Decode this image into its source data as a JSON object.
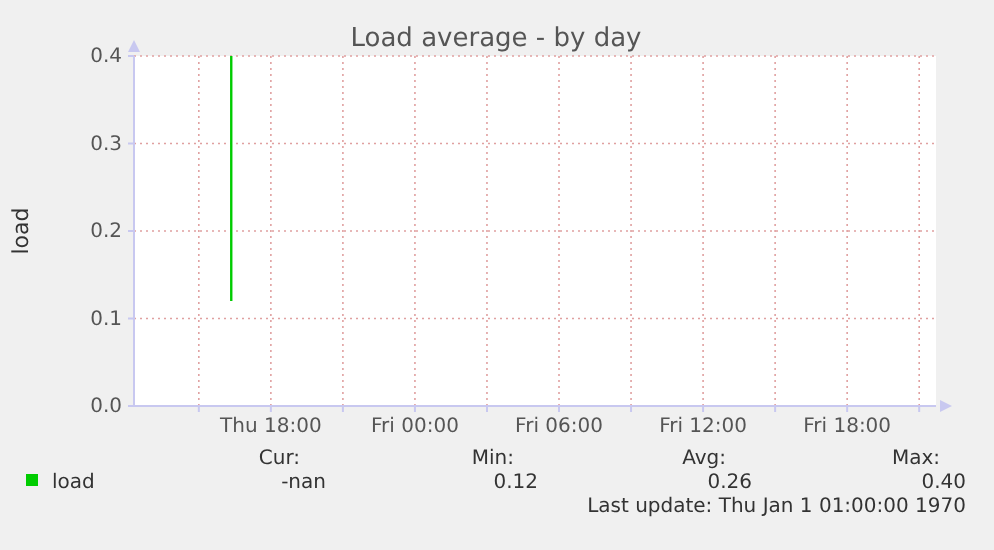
{
  "chart_data": {
    "type": "line",
    "title": "Load average - by day",
    "ylabel": "load",
    "x": [
      "1970-01-01T16:21",
      "1970-01-01T16:21"
    ],
    "series": [
      {
        "name": "load",
        "color": "#00cc00",
        "values": [
          0.4,
          0.12
        ]
      }
    ],
    "xlim": [
      "1970-01-01T12:18",
      "1970-01-02T21:42"
    ],
    "xticks": [
      {
        "value": "1970-01-01T15:00",
        "label": null
      },
      {
        "value": "1970-01-01T18:00",
        "label": "Thu 18:00"
      },
      {
        "value": "1970-01-01T21:00",
        "label": null
      },
      {
        "value": "1970-01-02T00:00",
        "label": "Fri 00:00"
      },
      {
        "value": "1970-01-02T03:00",
        "label": null
      },
      {
        "value": "1970-01-02T06:00",
        "label": "Fri 06:00"
      },
      {
        "value": "1970-01-02T09:00",
        "label": null
      },
      {
        "value": "1970-01-02T12:00",
        "label": "Fri 12:00"
      },
      {
        "value": "1970-01-02T15:00",
        "label": null
      },
      {
        "value": "1970-01-02T18:00",
        "label": "Fri 18:00"
      },
      {
        "value": "1970-01-02T21:00",
        "label": null
      }
    ],
    "ylim": [
      0,
      0.4
    ],
    "yticks": [
      {
        "value": 0,
        "label": "0.0"
      },
      {
        "value": 0.1,
        "label": "0.1"
      },
      {
        "value": 0.2,
        "label": "0.2"
      },
      {
        "value": 0.3,
        "label": "0.3"
      },
      {
        "value": 0.4,
        "label": "0.4"
      }
    ],
    "grid": true,
    "legend": "bottom",
    "annotations": [
      "Cur:",
      "Min:",
      "Avg:",
      "Max:",
      "-nan",
      "0.12",
      "0.26",
      "0.40",
      "Last update: Thu Jan  1 01:00:00 1970"
    ]
  }
}
